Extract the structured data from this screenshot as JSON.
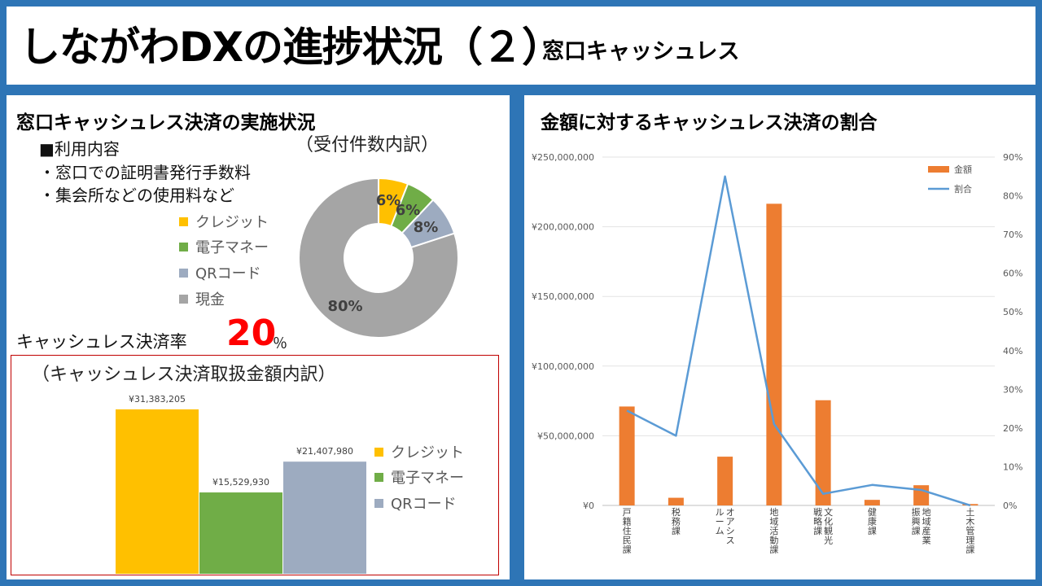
{
  "header": {
    "title": "しながわDXの進捗状況（２）",
    "subtitle": "窓口キャッシュレス"
  },
  "left": {
    "heading": "窓口キャッシュレス決済の実施状況",
    "pie_caption": "（受付件数内訳）",
    "usage_title": "■利用内容",
    "usage_items": [
      "・窓口での証明書発行手数料",
      "・集会所などの使用料など"
    ],
    "rate_label": "キャッシュレス決済率",
    "rate_value": "20",
    "rate_unit": "％",
    "bar_caption": "（キャッシュレス決済取扱金額内訳）"
  },
  "right": {
    "heading": "金額に対するキャッシュレス決済の割合"
  },
  "colors": {
    "credit": "#ffc000",
    "emoney": "#70ad47",
    "qr": "#9dabc0",
    "cash": "#a5a5a5",
    "bar": "#ed7d31",
    "line": "#5b9bd5",
    "rate": "#ff0000"
  },
  "chart_data": [
    {
      "type": "pie",
      "variant": "donut",
      "caption": "（受付件数内訳）",
      "labels": [
        "クレジット",
        "電子マネー",
        "QRコード",
        "現金"
      ],
      "values": [
        6,
        6,
        8,
        80
      ],
      "data_labels": [
        "6%",
        "6%",
        "8%",
        "80%"
      ],
      "legend": "left"
    },
    {
      "type": "bar",
      "caption": "（キャッシュレス決済取扱金額内訳）",
      "categories": [
        "クレジット",
        "電子マネー",
        "QRコード"
      ],
      "values": [
        31383205,
        15529930,
        21407980
      ],
      "data_labels": [
        "¥31,383,205",
        "¥15,529,930",
        "¥21,407,980"
      ],
      "legend": "right"
    },
    {
      "type": "bar",
      "title": "金額に対するキャッシュレス決済の割合",
      "categories": [
        "戸籍住民課",
        "税務課",
        "オアシスルーム",
        "地域活動課",
        "文化観光戦略課",
        "健康課",
        "地域産業振興課",
        "土木管理課"
      ],
      "category_lines": [
        [
          "戸籍住民課"
        ],
        [
          "税務課"
        ],
        [
          "オアシス",
          "ルーム"
        ],
        [
          "地域活動課"
        ],
        [
          "文化観光",
          "戦略課"
        ],
        [
          "健康課"
        ],
        [
          "地域産業",
          "振興課"
        ],
        [
          "土木管理課"
        ]
      ],
      "series": [
        {
          "name": "金額",
          "type": "bar",
          "axis": "left",
          "values": [
            71000000,
            5500000,
            35000000,
            216500000,
            75500000,
            4000000,
            14500000,
            1000000
          ]
        },
        {
          "name": "割合",
          "type": "line",
          "axis": "right",
          "values": [
            24.5,
            18,
            85,
            21,
            3,
            5.3,
            4,
            0
          ]
        }
      ],
      "y_left": {
        "min": 0,
        "max": 250000000,
        "step": 50000000,
        "ticks": [
          "¥0",
          "¥50,000,000",
          "¥100,000,000",
          "¥150,000,000",
          "¥200,000,000",
          "¥250,000,000"
        ]
      },
      "y_right": {
        "min": 0,
        "max": 90,
        "step": 10,
        "ticks": [
          "0%",
          "10%",
          "20%",
          "30%",
          "40%",
          "50%",
          "60%",
          "70%",
          "80%",
          "90%"
        ]
      },
      "grid": true,
      "legend": "top-right"
    }
  ]
}
